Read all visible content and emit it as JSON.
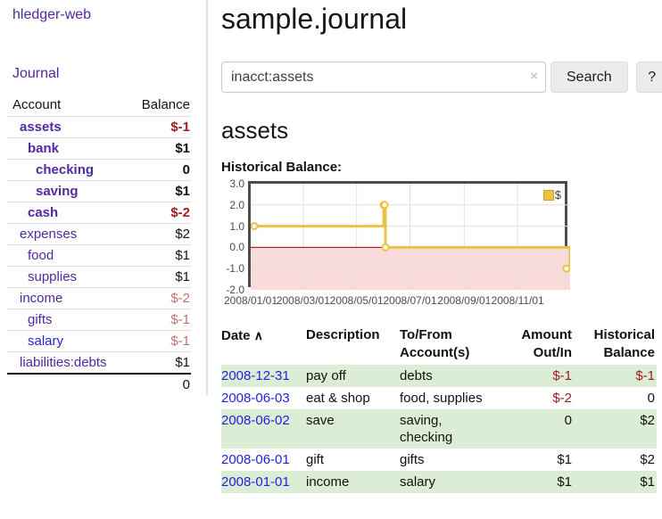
{
  "colors": {
    "link_purple": "#5228a2",
    "link_blue": "#2823d5",
    "date_link_blue": "#2222dd",
    "negative_red": "#9d1c1c",
    "negative_dim_red": "#bf7170",
    "row_stripe_green": "#dcedd5",
    "chart_gold": "#edc240",
    "chart_negative_fill": "#f9dbdb",
    "chart_zero_line": "#a40000"
  },
  "sidebar": {
    "brand": "hledger-web",
    "nav_journal": "Journal",
    "accounts": {
      "col_account": "Account",
      "col_balance": "Balance",
      "rows": [
        {
          "name": "assets",
          "depth": 0,
          "bold": true,
          "link": "purple",
          "balance": "$-1",
          "balance_class": "neg"
        },
        {
          "name": "bank",
          "depth": 1,
          "bold": true,
          "link": "purple",
          "balance": "$1",
          "balance_class": "pos"
        },
        {
          "name": "checking",
          "depth": 2,
          "bold": true,
          "link": "purple",
          "balance": "0",
          "balance_class": "pos"
        },
        {
          "name": "saving",
          "depth": 2,
          "bold": true,
          "link": "purple",
          "balance": "$1",
          "balance_class": "pos"
        },
        {
          "name": "cash",
          "depth": 1,
          "bold": true,
          "link": "purple",
          "balance": "$-2",
          "balance_class": "neg"
        },
        {
          "name": "expenses",
          "depth": 0,
          "bold": false,
          "link": "purple",
          "balance": "$2",
          "balance_class": "pos"
        },
        {
          "name": "food",
          "depth": 1,
          "bold": false,
          "link": "purple",
          "balance": "$1",
          "balance_class": "pos"
        },
        {
          "name": "supplies",
          "depth": 1,
          "bold": false,
          "link": "purple",
          "balance": "$1",
          "balance_class": "pos"
        },
        {
          "name": "income",
          "depth": 0,
          "bold": false,
          "link": "purple",
          "balance": "$-2",
          "balance_class": "negdim"
        },
        {
          "name": "gifts",
          "depth": 1,
          "bold": false,
          "link": "purple",
          "balance": "$-1",
          "balance_class": "negdim"
        },
        {
          "name": "salary",
          "depth": 1,
          "bold": false,
          "link": "blue",
          "balance": "$-1",
          "balance_class": "negdim"
        },
        {
          "name": "liabilities:debts",
          "depth": 0,
          "bold": false,
          "link": "purple",
          "balance": "$1",
          "balance_class": "pos"
        }
      ],
      "total": "0"
    }
  },
  "main": {
    "title": "sample.journal",
    "search": {
      "value": "inacct:assets",
      "clear_icon": "×",
      "button_label": "Search",
      "help_label": "?"
    },
    "account_heading": "assets",
    "chart_label": "Historical Balance:"
  },
  "chart_data": {
    "type": "line",
    "title": "Historical Balance",
    "step": true,
    "series": [
      {
        "name": "$",
        "color": "#edc240",
        "points": [
          [
            "2008-01-01",
            1
          ],
          [
            "2008-06-01",
            2
          ],
          [
            "2008-06-02",
            2
          ],
          [
            "2008-06-03",
            0
          ],
          [
            "2008-12-31",
            -1
          ]
        ]
      }
    ],
    "xrange": [
      "2008-01-01",
      "2008-12-31"
    ],
    "ylim": [
      -2,
      3
    ],
    "yticks": [
      {
        "v": 3,
        "label": "3.0"
      },
      {
        "v": 2,
        "label": "2.0"
      },
      {
        "v": 1,
        "label": "1.0"
      },
      {
        "v": 0,
        "label": "0.0"
      },
      {
        "v": -1,
        "label": "-1.0"
      },
      {
        "v": -2,
        "label": "-2.0"
      }
    ],
    "xticks": [
      {
        "date": "2008-01-01",
        "label": "2008/01/01"
      },
      {
        "date": "2008-03-01",
        "label": "2008/03/01"
      },
      {
        "date": "2008-05-01",
        "label": "2008/05/01"
      },
      {
        "date": "2008-07-01",
        "label": "2008/07/01"
      },
      {
        "date": "2008-09-01",
        "label": "2008/09/01"
      },
      {
        "date": "2008-11-01",
        "label": "2008/11/01"
      }
    ],
    "grid": true,
    "legend": {
      "label": "$",
      "position": "top-right"
    }
  },
  "register": {
    "headers": {
      "date": "Date",
      "sort_icon": "∧",
      "description": "Description",
      "account": "To/From Account(s)",
      "amount": "Amount Out/In",
      "balance": "Historical Balance"
    },
    "rows": [
      {
        "date": "2008-12-31",
        "description": "pay off",
        "account": "debts",
        "amount": "$-1",
        "amount_class": "neg",
        "balance": "$-1",
        "balance_class": "neg",
        "striped": true
      },
      {
        "date": "2008-06-03",
        "description": "eat & shop",
        "account": "food, supplies",
        "amount": "$-2",
        "amount_class": "neg",
        "balance": "0",
        "balance_class": "pos",
        "striped": false
      },
      {
        "date": "2008-06-02",
        "description": "save",
        "account": "saving, checking",
        "amount": "0",
        "amount_class": "pos",
        "balance": "$2",
        "balance_class": "pos",
        "striped": true
      },
      {
        "date": "2008-06-01",
        "description": "gift",
        "account": "gifts",
        "amount": "$1",
        "amount_class": "pos",
        "balance": "$2",
        "balance_class": "pos",
        "striped": false
      },
      {
        "date": "2008-01-01",
        "description": "income",
        "account": "salary",
        "amount": "$1",
        "amount_class": "pos",
        "balance": "$1",
        "balance_class": "pos",
        "striped": true
      }
    ]
  }
}
